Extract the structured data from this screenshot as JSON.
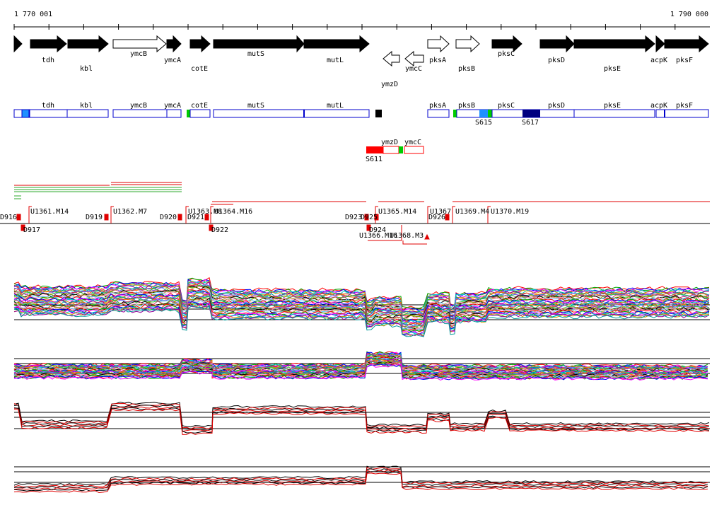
{
  "ruler": {
    "start_label": "1 770 001",
    "end_label": "1 790 000"
  },
  "genes": [
    {
      "name": "",
      "strand": "+",
      "filled": true
    },
    {
      "name": "tdh",
      "strand": "+",
      "filled": true
    },
    {
      "name": "kbl",
      "strand": "+",
      "filled": true
    },
    {
      "name": "ymcB",
      "strand": "+",
      "filled": false
    },
    {
      "name": "ymcA",
      "strand": "+",
      "filled": true
    },
    {
      "name": "cotE",
      "strand": "+",
      "filled": true
    },
    {
      "name": "mutS",
      "strand": "+",
      "filled": true
    },
    {
      "name": "mutL",
      "strand": "+",
      "filled": true
    },
    {
      "name": "ymzD",
      "strand": "-",
      "filled": false
    },
    {
      "name": "ymcC",
      "strand": "-",
      "filled": false
    },
    {
      "name": "pksA",
      "strand": "+",
      "filled": false
    },
    {
      "name": "pksB",
      "strand": "+",
      "filled": false
    },
    {
      "name": "pksC",
      "strand": "+",
      "filled": true
    },
    {
      "name": "pksD",
      "strand": "+",
      "filled": true
    },
    {
      "name": "pksE",
      "strand": "+",
      "filled": true
    },
    {
      "name": "acpK",
      "strand": "+",
      "filled": true
    },
    {
      "name": "pksF",
      "strand": "+",
      "filled": true
    }
  ],
  "segments_forward": [
    {
      "label": "tdh"
    },
    {
      "label": "kbl"
    },
    {
      "label": "ymcB"
    },
    {
      "label": "ymcA"
    },
    {
      "label": "cotE"
    },
    {
      "label": "mutS"
    },
    {
      "label": "mutL"
    },
    {
      "label": "pksA"
    },
    {
      "label": "pksB"
    },
    {
      "label": "pksC"
    },
    {
      "label": "pksD"
    },
    {
      "label": "pksE"
    },
    {
      "label": "acpK"
    },
    {
      "label": "pksF"
    }
  ],
  "sites_forward": [
    {
      "label": "S615"
    },
    {
      "label": "S617"
    }
  ],
  "segments_reverse": [
    {
      "label": "ymzD"
    },
    {
      "label": "ymcC"
    }
  ],
  "sites_reverse": [
    {
      "label": "S611"
    }
  ],
  "promoters_up": [
    {
      "label": "U1361.M14"
    },
    {
      "label": "U1362.M7"
    },
    {
      "label": "U1363.M8"
    },
    {
      "label": "U1364.M16"
    },
    {
      "label": "U1365.M14"
    },
    {
      "label": "U1367"
    },
    {
      "label": "U1369.M4"
    },
    {
      "label": "U1370.M19"
    }
  ],
  "terminators_up": [
    {
      "label": "D916"
    },
    {
      "label": "D919"
    },
    {
      "label": "D920"
    },
    {
      "label": "D921"
    },
    {
      "label": "D923"
    },
    {
      "label": "D925"
    },
    {
      "label": "D926"
    }
  ],
  "markers_down": [
    {
      "label": "D917"
    },
    {
      "label": "D922"
    },
    {
      "label": "D924"
    },
    {
      "label": "U1366.M16"
    },
    {
      "label": "U1368.M3"
    }
  ],
  "colors": {
    "gene_fill": "#000000",
    "segment_outline": "#0000cc",
    "segment_dark": "#000080",
    "site_blue": "#1e90ff",
    "site_green": "#00cc00",
    "site_red": "#ff0000",
    "line_red": "#e00000",
    "line_green": "#2eaa2e",
    "trace_black": "#000000",
    "trace_red": "#e00000"
  }
}
